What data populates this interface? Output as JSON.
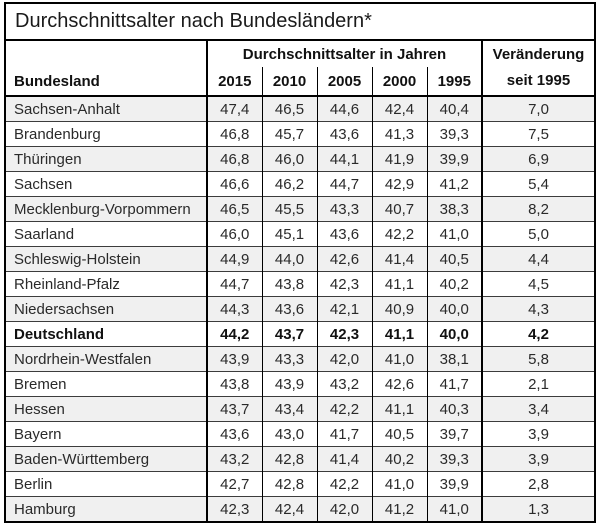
{
  "title": "Durchschnittsalter nach Bundesländern*",
  "chart_data": {
    "type": "table",
    "title": "Durchschnittsalter nach Bundesländern*",
    "header": {
      "col1": "Bundesland",
      "group": "Durchschnittsalter in Jahren",
      "years": [
        "2015",
        "2010",
        "2005",
        "2000",
        "1995"
      ],
      "change": "Veränderung seit 1995"
    },
    "rows": [
      {
        "name": "Sachsen-Anhalt",
        "values": [
          "47,4",
          "46,5",
          "44,6",
          "42,4",
          "40,4"
        ],
        "change": "7,0",
        "bold": false
      },
      {
        "name": "Brandenburg",
        "values": [
          "46,8",
          "45,7",
          "43,6",
          "41,3",
          "39,3"
        ],
        "change": "7,5",
        "bold": false
      },
      {
        "name": "Thüringen",
        "values": [
          "46,8",
          "46,0",
          "44,1",
          "41,9",
          "39,9"
        ],
        "change": "6,9",
        "bold": false
      },
      {
        "name": "Sachsen",
        "values": [
          "46,6",
          "46,2",
          "44,7",
          "42,9",
          "41,2"
        ],
        "change": "5,4",
        "bold": false
      },
      {
        "name": "Mecklenburg-Vorpommern",
        "values": [
          "46,5",
          "45,5",
          "43,3",
          "40,7",
          "38,3"
        ],
        "change": "8,2",
        "bold": false
      },
      {
        "name": "Saarland",
        "values": [
          "46,0",
          "45,1",
          "43,6",
          "42,2",
          "41,0"
        ],
        "change": "5,0",
        "bold": false
      },
      {
        "name": "Schleswig-Holstein",
        "values": [
          "44,9",
          "44,0",
          "42,6",
          "41,4",
          "40,5"
        ],
        "change": "4,4",
        "bold": false
      },
      {
        "name": "Rheinland-Pfalz",
        "values": [
          "44,7",
          "43,8",
          "42,3",
          "41,1",
          "40,2"
        ],
        "change": "4,5",
        "bold": false
      },
      {
        "name": "Niedersachsen",
        "values": [
          "44,3",
          "43,6",
          "42,1",
          "40,9",
          "40,0"
        ],
        "change": "4,3",
        "bold": false
      },
      {
        "name": "Deutschland",
        "values": [
          "44,2",
          "43,7",
          "42,3",
          "41,1",
          "40,0"
        ],
        "change": "4,2",
        "bold": true
      },
      {
        "name": "Nordrhein-Westfalen",
        "values": [
          "43,9",
          "43,3",
          "42,0",
          "41,0",
          "38,1"
        ],
        "change": "5,8",
        "bold": false
      },
      {
        "name": "Bremen",
        "values": [
          "43,8",
          "43,9",
          "43,2",
          "42,6",
          "41,7"
        ],
        "change": "2,1",
        "bold": false
      },
      {
        "name": "Hessen",
        "values": [
          "43,7",
          "43,4",
          "42,2",
          "41,1",
          "40,3"
        ],
        "change": "3,4",
        "bold": false
      },
      {
        "name": "Bayern",
        "values": [
          "43,6",
          "43,0",
          "41,7",
          "40,5",
          "39,7"
        ],
        "change": "3,9",
        "bold": false
      },
      {
        "name": "Baden-Württemberg",
        "values": [
          "43,2",
          "42,8",
          "41,4",
          "40,2",
          "39,3"
        ],
        "change": "3,9",
        "bold": false
      },
      {
        "name": "Berlin",
        "values": [
          "42,7",
          "42,8",
          "42,2",
          "41,0",
          "39,9"
        ],
        "change": "2,8",
        "bold": false
      },
      {
        "name": "Hamburg",
        "values": [
          "42,3",
          "42,4",
          "42,0",
          "41,2",
          "41,0"
        ],
        "change": "1,3",
        "bold": false
      }
    ],
    "colors": {
      "row_shade": "#f0f0f0",
      "border": "#000000",
      "text": "#2a2a2a"
    }
  }
}
